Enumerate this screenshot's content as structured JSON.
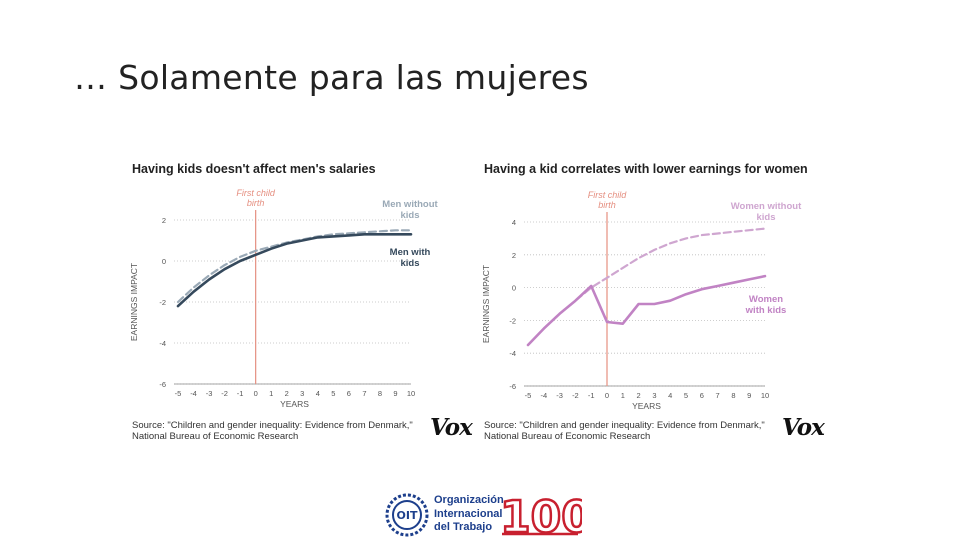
{
  "slide": {
    "title": "… Solamente para las mujeres"
  },
  "charts": [
    {
      "title": "Having kids doesn't affect men's salaries",
      "source_line1": "Source: \"Children and gender inequality: Evidence from Denmark,\"",
      "source_line2": "National Bureau of Economic Research",
      "logo": "Vox"
    },
    {
      "title": "Having a kid correlates with lower earnings for women",
      "source_line1": "Source: \"Children and gender inequality: Evidence from Denmark,\"",
      "source_line2": "National Bureau of Economic Research",
      "logo": "Vox"
    }
  ],
  "chart_data": [
    {
      "type": "line",
      "title": "Having kids doesn't affect men's salaries",
      "xlabel": "YEARS",
      "ylabel": "EARNINGS IMPACT",
      "x": [
        -5,
        -4,
        -3,
        -2,
        -1,
        0,
        1,
        2,
        3,
        4,
        5,
        6,
        7,
        8,
        9,
        10
      ],
      "xlim": [
        -5,
        10
      ],
      "ylim": [
        -6,
        2
      ],
      "yticks": [
        2,
        0,
        -2,
        -4,
        -6
      ],
      "event_line": {
        "x": 0,
        "label_line1": "First child",
        "label_line2": "birth"
      },
      "series": [
        {
          "name": "Men without kids",
          "label_line1": "Men without",
          "label_line2": "kids",
          "style": "dashed",
          "color": "#9aa9b6",
          "values": [
            -2.0,
            -1.3,
            -0.7,
            -0.2,
            0.2,
            0.5,
            0.7,
            0.9,
            1.05,
            1.2,
            1.3,
            1.35,
            1.4,
            1.45,
            1.5,
            1.5
          ]
        },
        {
          "name": "Men with kids",
          "label_line1": "Men with",
          "label_line2": "kids",
          "style": "solid",
          "color": "#35495c",
          "values": [
            -2.2,
            -1.5,
            -0.9,
            -0.4,
            0.0,
            0.3,
            0.6,
            0.85,
            1.0,
            1.15,
            1.2,
            1.25,
            1.3,
            1.3,
            1.3,
            1.3
          ]
        }
      ],
      "colors": {
        "grid": "#bdbdbd",
        "event": "#e58f80",
        "axis_text": "#555555"
      }
    },
    {
      "type": "line",
      "title": "Having a kid correlates with lower earnings for women",
      "xlabel": "YEARS",
      "ylabel": "EARNINGS IMPACT",
      "x": [
        -5,
        -4,
        -3,
        -2,
        -1,
        0,
        1,
        2,
        3,
        4,
        5,
        6,
        7,
        8,
        9,
        10
      ],
      "xlim": [
        -5,
        10
      ],
      "ylim": [
        -6,
        4
      ],
      "yticks": [
        4,
        2,
        0,
        -2,
        -4,
        -6
      ],
      "event_line": {
        "x": 0,
        "label_line1": "First child",
        "label_line2": "birth"
      },
      "series": [
        {
          "name": "Women without kids",
          "label_line1": "Women without",
          "label_line2": "kids",
          "style": "dashed",
          "color": "#cfa6d0",
          "values": [
            -3.5,
            -2.5,
            -1.6,
            -0.8,
            0.0,
            0.6,
            1.2,
            1.8,
            2.3,
            2.7,
            3.0,
            3.2,
            3.3,
            3.4,
            3.5,
            3.6
          ]
        },
        {
          "name": "Women with kids",
          "label_line1": "Women",
          "label_line2": "with kids",
          "style": "solid",
          "color": "#c183c4",
          "values": [
            -3.5,
            -2.5,
            -1.6,
            -0.8,
            0.1,
            -2.1,
            -2.2,
            -1.0,
            -1.0,
            -0.8,
            -0.4,
            -0.1,
            0.1,
            0.3,
            0.5,
            0.7
          ]
        }
      ],
      "colors": {
        "grid": "#bdbdbd",
        "event": "#e58f80",
        "axis_text": "#555555"
      }
    }
  ],
  "footer": {
    "org_line1": "Organización",
    "org_line2": "Internacional",
    "org_line3": "del Trabajo",
    "emblem_text": "OIT",
    "anniversary": "100",
    "colors": {
      "blue": "#1d3f8c",
      "red": "#c8202f"
    }
  }
}
